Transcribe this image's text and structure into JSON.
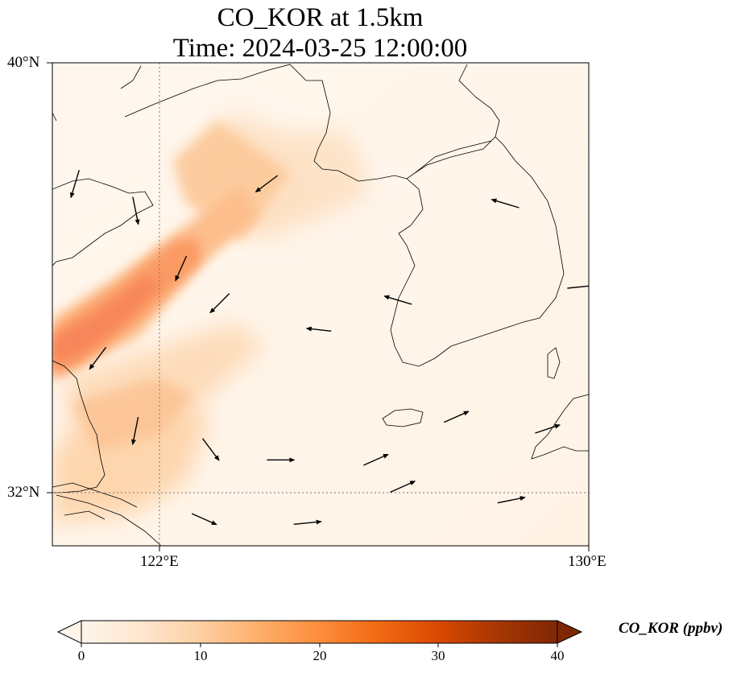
{
  "figure": {
    "title_line1": "CO_KOR at 1.5km",
    "title_line2": "Time: 2024-03-25 12:00:00"
  },
  "axes": {
    "x_ticks": [
      {
        "label": "122°E",
        "value": 122
      },
      {
        "label": "130°E",
        "value": 130
      }
    ],
    "y_ticks": [
      {
        "label": "40°N",
        "value": 40
      },
      {
        "label": "32°N",
        "value": 32
      }
    ],
    "lon_range": [
      120,
      130
    ],
    "lat_range": [
      31,
      40
    ],
    "gridlines": [
      {
        "lon": 122
      },
      {
        "lat": 32
      }
    ]
  },
  "colorbar": {
    "label": "CO_KOR (ppbv)",
    "min": 0,
    "max": 40,
    "ticks": [
      {
        "label": "0",
        "value": 0
      },
      {
        "label": "10",
        "value": 10
      },
      {
        "label": "20",
        "value": 20
      },
      {
        "label": "30",
        "value": 30
      },
      {
        "label": "40",
        "value": 40
      }
    ],
    "colormap": [
      "#fff5eb",
      "#fee6ce",
      "#fdd0a2",
      "#fdae6b",
      "#fd8d3c",
      "#f16913",
      "#d94801",
      "#a63603",
      "#7f2704"
    ],
    "extend": "both"
  },
  "chart_data": {
    "type": "heatmap",
    "title": "CO_KOR at 1.5km",
    "subtitle": "Time: 2024-03-25 12:00:00",
    "variable": "CO_KOR",
    "units": "ppbv",
    "x_range": [
      120,
      130
    ],
    "y_range": [
      31,
      40
    ],
    "features": [
      {
        "description": "Elevated CO plume along SW-NE band over Yellow Sea",
        "peak_value": 24,
        "from": [
          120.0,
          33.7
        ],
        "to": [
          121.5,
          35.8
        ]
      },
      {
        "description": "Northern plume extension toward Liaodong/Bohai",
        "peak_value": 12,
        "from": [
          121.5,
          35.8
        ],
        "to": [
          124.0,
          37.7
        ]
      },
      {
        "description": "Moderate CO over East China coast",
        "peak_value": 10,
        "from": [
          120.0,
          31.5
        ],
        "to": [
          122.0,
          33.5
        ]
      }
    ],
    "wind_vectors": [
      {
        "lon": 120.5,
        "lat": 38.0,
        "u": -0.3,
        "v": -1.0
      },
      {
        "lon": 121.5,
        "lat": 37.5,
        "u": 0.2,
        "v": -1.0
      },
      {
        "lon": 122.5,
        "lat": 36.4,
        "u": -0.4,
        "v": -0.9
      },
      {
        "lon": 123.3,
        "lat": 35.7,
        "u": -0.7,
        "v": -0.7
      },
      {
        "lon": 124.2,
        "lat": 37.9,
        "u": -0.8,
        "v": -0.6
      },
      {
        "lon": 125.2,
        "lat": 35.0,
        "u": -0.9,
        "v": 0.1
      },
      {
        "lon": 126.7,
        "lat": 35.5,
        "u": -1.0,
        "v": 0.3
      },
      {
        "lon": 128.7,
        "lat": 37.3,
        "u": -1.0,
        "v": 0.3
      },
      {
        "lon": 129.6,
        "lat": 35.8,
        "u": 1.0,
        "v": 0.1
      },
      {
        "lon": 121.0,
        "lat": 34.7,
        "u": -0.6,
        "v": -0.8
      },
      {
        "lon": 121.6,
        "lat": 33.4,
        "u": -0.2,
        "v": -1.0
      },
      {
        "lon": 122.8,
        "lat": 33.0,
        "u": 0.6,
        "v": -0.8
      },
      {
        "lon": 124.0,
        "lat": 32.6,
        "u": 1.0,
        "v": 0.0
      },
      {
        "lon": 125.8,
        "lat": 32.5,
        "u": 0.9,
        "v": 0.4
      },
      {
        "lon": 127.3,
        "lat": 33.3,
        "u": 0.9,
        "v": 0.4
      },
      {
        "lon": 129.0,
        "lat": 33.1,
        "u": 0.9,
        "v": 0.3
      },
      {
        "lon": 122.6,
        "lat": 31.6,
        "u": 0.9,
        "v": -0.4
      },
      {
        "lon": 124.5,
        "lat": 31.4,
        "u": 1.0,
        "v": 0.1
      },
      {
        "lon": 126.3,
        "lat": 32.0,
        "u": 0.9,
        "v": 0.4
      },
      {
        "lon": 128.3,
        "lat": 31.8,
        "u": 1.0,
        "v": 0.2
      }
    ]
  }
}
